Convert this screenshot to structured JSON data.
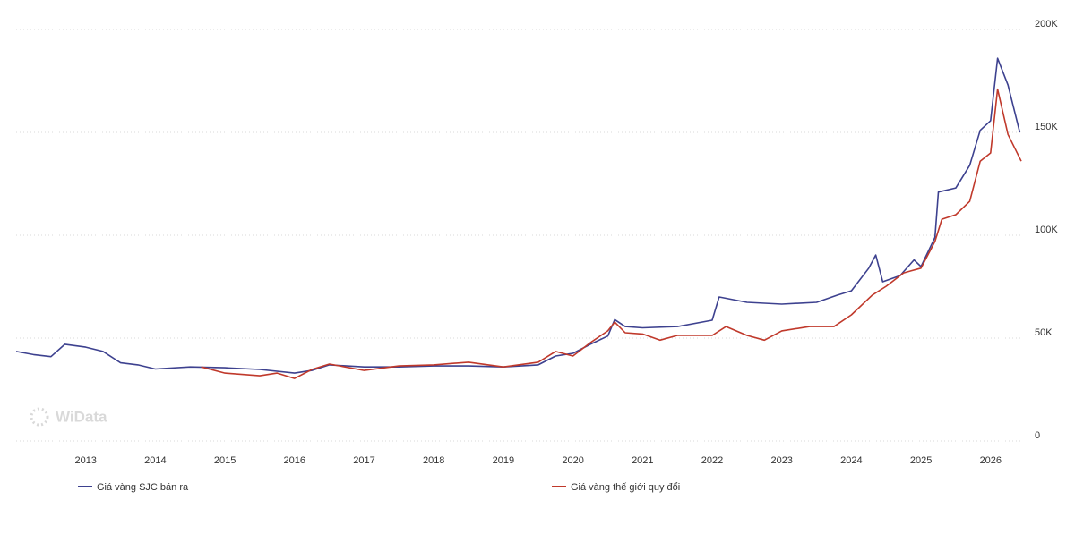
{
  "chart_data": {
    "type": "line",
    "watermark": "WiData",
    "xlim": [
      2012.0,
      2026.44
    ],
    "xticks": [
      2013,
      2014,
      2015,
      2016,
      2017,
      2018,
      2019,
      2020,
      2021,
      2022,
      2023,
      2024,
      2025,
      2026
    ],
    "ylim": [
      0,
      200000
    ],
    "yticks": [
      {
        "value": 0,
        "label": "0"
      },
      {
        "value": 50000,
        "label": "50K"
      },
      {
        "value": 100000,
        "label": "100K"
      },
      {
        "value": 150000,
        "label": "150K"
      },
      {
        "value": 200000,
        "label": "200K"
      }
    ],
    "grid": true,
    "series": [
      {
        "name": "Giá vàng SJC bán ra",
        "color": "#3d418f",
        "x": [
          2012.0,
          2012.25,
          2012.5,
          2012.7,
          2013.0,
          2013.25,
          2013.5,
          2013.75,
          2014.0,
          2014.5,
          2015.0,
          2015.5,
          2016.0,
          2016.25,
          2016.5,
          2017.0,
          2017.5,
          2018.0,
          2018.5,
          2019.0,
          2019.5,
          2019.75,
          2020.0,
          2020.25,
          2020.5,
          2020.6,
          2020.75,
          2021.0,
          2021.5,
          2022.0,
          2022.1,
          2022.5,
          2023.0,
          2023.5,
          2023.8,
          2024.0,
          2024.25,
          2024.35,
          2024.45,
          2024.7,
          2024.9,
          2025.0,
          2025.2,
          2025.25,
          2025.5,
          2025.7,
          2025.85,
          2026.0,
          2026.1,
          2026.25,
          2026.42
        ],
        "values": [
          43500,
          42000,
          41000,
          47000,
          45600,
          43500,
          38000,
          37000,
          35000,
          36000,
          35600,
          34800,
          33000,
          34300,
          37000,
          36000,
          36000,
          36500,
          36500,
          36000,
          37000,
          41300,
          42600,
          47000,
          51000,
          59000,
          55600,
          55000,
          55600,
          58700,
          70000,
          67400,
          66500,
          67400,
          70900,
          73000,
          84000,
          90400,
          77400,
          80400,
          88000,
          84800,
          99000,
          121000,
          123000,
          134000,
          151000,
          155700,
          186000,
          173000,
          150000
        ]
      },
      {
        "name": "Giá vàng thế giới quy đổi",
        "color": "#c0392b",
        "x": [
          2014.66,
          2015.0,
          2015.5,
          2015.75,
          2016.0,
          2016.25,
          2016.5,
          2017.0,
          2017.5,
          2018.0,
          2018.5,
          2019.0,
          2019.5,
          2019.75,
          2020.0,
          2020.25,
          2020.5,
          2020.6,
          2020.75,
          2021.0,
          2021.25,
          2021.5,
          2022.0,
          2022.2,
          2022.5,
          2022.75,
          2023.0,
          2023.4,
          2023.75,
          2024.0,
          2024.3,
          2024.5,
          2024.75,
          2025.0,
          2025.2,
          2025.3,
          2025.5,
          2025.7,
          2025.85,
          2026.0,
          2026.1,
          2026.25,
          2026.44
        ],
        "values": [
          36000,
          33000,
          31700,
          33000,
          30400,
          34800,
          37400,
          34300,
          36500,
          37000,
          38300,
          36000,
          38300,
          43500,
          41300,
          47800,
          53500,
          57800,
          52600,
          52000,
          49000,
          51300,
          51300,
          55600,
          51300,
          49000,
          53500,
          55600,
          55600,
          61300,
          70900,
          75200,
          81700,
          84000,
          97000,
          107800,
          110000,
          116500,
          136000,
          140000,
          171000,
          149000,
          136000
        ]
      }
    ]
  }
}
